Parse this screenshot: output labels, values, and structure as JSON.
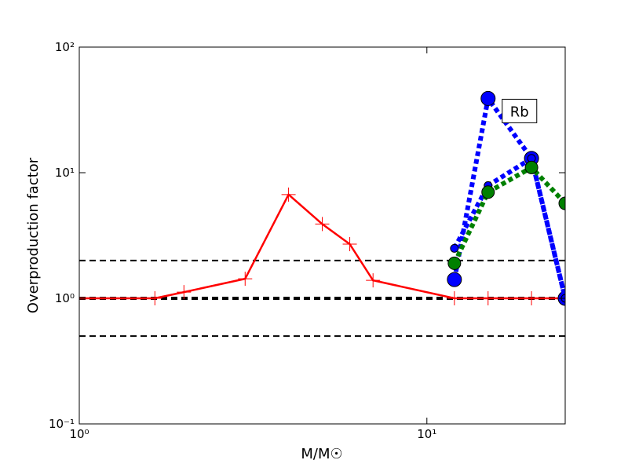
{
  "chart_data": {
    "type": "line",
    "xlabel": "M/M☉",
    "ylabel": "Overproduction factor",
    "xscale": "log",
    "yscale": "log",
    "xlim": [
      1,
      25
    ],
    "ylim": [
      0.1,
      100
    ],
    "xticks": [
      {
        "value": 1,
        "label": "10⁰"
      },
      {
        "value": 10,
        "label": "10¹"
      }
    ],
    "yticks": [
      {
        "value": 0.1,
        "label": "10⁻¹"
      },
      {
        "value": 1,
        "label": "10⁰"
      },
      {
        "value": 10,
        "label": "10¹"
      },
      {
        "value": 100,
        "label": "10²"
      }
    ],
    "hlines": [
      0.5,
      1,
      2
    ],
    "annotation": "Rb",
    "series": [
      {
        "color": "#ff0000",
        "style": "solid",
        "marker": "plus",
        "x": [
          1,
          1.65,
          2,
          3,
          4,
          5,
          6,
          7,
          12,
          15,
          20,
          25
        ],
        "values": [
          1,
          1,
          1.12,
          1.43,
          6.7,
          3.9,
          2.7,
          1.39,
          1,
          1,
          1,
          1
        ]
      },
      {
        "color": "#0000ff",
        "style": "dotted",
        "marker": "circle-large",
        "x": [
          12,
          15,
          20,
          25
        ],
        "values": [
          1.41,
          39,
          13,
          1
        ]
      },
      {
        "color": "#0000ff",
        "style": "dotted",
        "marker": "circle-small",
        "x": [
          12,
          15,
          20,
          25
        ],
        "values": [
          2.5,
          7.9,
          13,
          1
        ]
      },
      {
        "color": "#008000",
        "style": "dotted",
        "marker": "circle-medium",
        "x": [
          12,
          15,
          20,
          25
        ],
        "values": [
          1.9,
          7.0,
          11,
          5.7
        ]
      }
    ]
  }
}
